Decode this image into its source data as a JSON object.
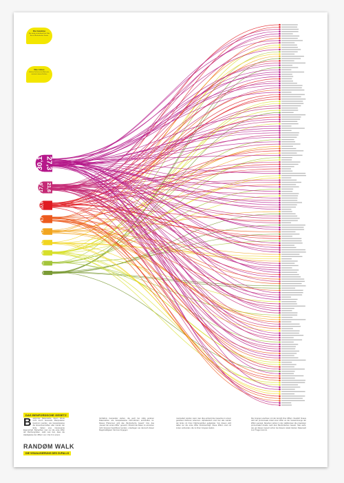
{
  "bubbles": [
    {
      "title": "Die Gewinne",
      "text": "Wie häufig ist die Anzahl der Ziffer Eins im Benfordschen Gesetz"
    },
    {
      "title": "Das Limes",
      "text": "Welche Zahl ist in der Welt mehr, statistisch keinen Einfluss"
    }
  ],
  "footer": {
    "section_label": "DAS BENFORDSCHE GESETZ",
    "dropcap": "B",
    "col1": "estimmte Datensätze, deren Werte nicht durch bewusste Manipulation bestimmt wurden, wie beispielsweise die Einwohnerzahlen aller Länder der Erde, haben eine interessante Eigenschaft. Betrachten man nur die erste Ziffer der Flächengrößen, stellt man fest, dass die Häufigkeiten der Ziffern von 1 bis 9 im einem",
    "col2": "Verhältnis zueinander stehen, die auch bei völlig anderen Datensätzen wie beispielsweise DAX-Werten anzutreffen ist. Dieses Phänomen wird das „Benfordsche Gesetz“ bzw. das „Gesetz der ersten Ziffer“ genannt. Obwohl die Daten im einzelnen nicht bewusst beeinflusst wurden, unterliegen sie dennoch dieser Regelmäßigkeit. Sind sie hingegen",
    "col3": "manipuliert worden, kann man dies anhand des Gesetzes in einem gewissen Rahmen erkennen. Alphabetisch sind hier alle Länder der Erde mit ihren Flächengrößen aufgelistet. Von diesen wird dabei nur die erste Ziffer berücksichtigt. Diese Ziffern sind mit Linien verbunden, die zu ihren Gruppen laufen.",
    "col4": "Die Gruppen wachsen mit der Anzahl ihrer Ziffern. Deutlich hinaus wird der prozentuale Anteil einer Ziffer an der Gesamtmenge der Ziffern gezeigt. Daneben stehen in den Halbkreisen die erwarteten prozentualen Anteile nach dem Benfordschen Gesetz. Man sieht, wie gut dieses Gesetz schon bei diesem relativ kleinen Datensatz zum Tragen kommt.",
    "title": "RANDØM WALK",
    "subtitle": "DIE VISUALISIERUNG DES ZUFALLS"
  },
  "chart_data": {
    "type": "flow",
    "groups": [
      {
        "digit": "1",
        "observed": "27,3",
        "expected": "30,1",
        "color": "#b5178a"
      },
      {
        "digit": "2",
        "observed": "21,6",
        "expected": "17,6",
        "color": "#c42a75"
      },
      {
        "digit": "3",
        "observed": "",
        "expected": "12,5",
        "color": "#e01b22"
      },
      {
        "digit": "4",
        "observed": "",
        "expected": "9,7",
        "color": "#ec5a1c"
      },
      {
        "digit": "5",
        "observed": "",
        "expected": "7,9",
        "color": "#f2a51e"
      },
      {
        "digit": "6",
        "observed": "",
        "expected": "6,7",
        "color": "#f1d51f"
      },
      {
        "digit": "7",
        "observed": "",
        "expected": "5,8",
        "color": "#d7df2a"
      },
      {
        "digit": "8",
        "observed": "",
        "expected": "5,1",
        "color": "#a3c43a"
      },
      {
        "digit": "9",
        "observed": "",
        "expected": "4,6",
        "color": "#7a9a35"
      }
    ]
  }
}
